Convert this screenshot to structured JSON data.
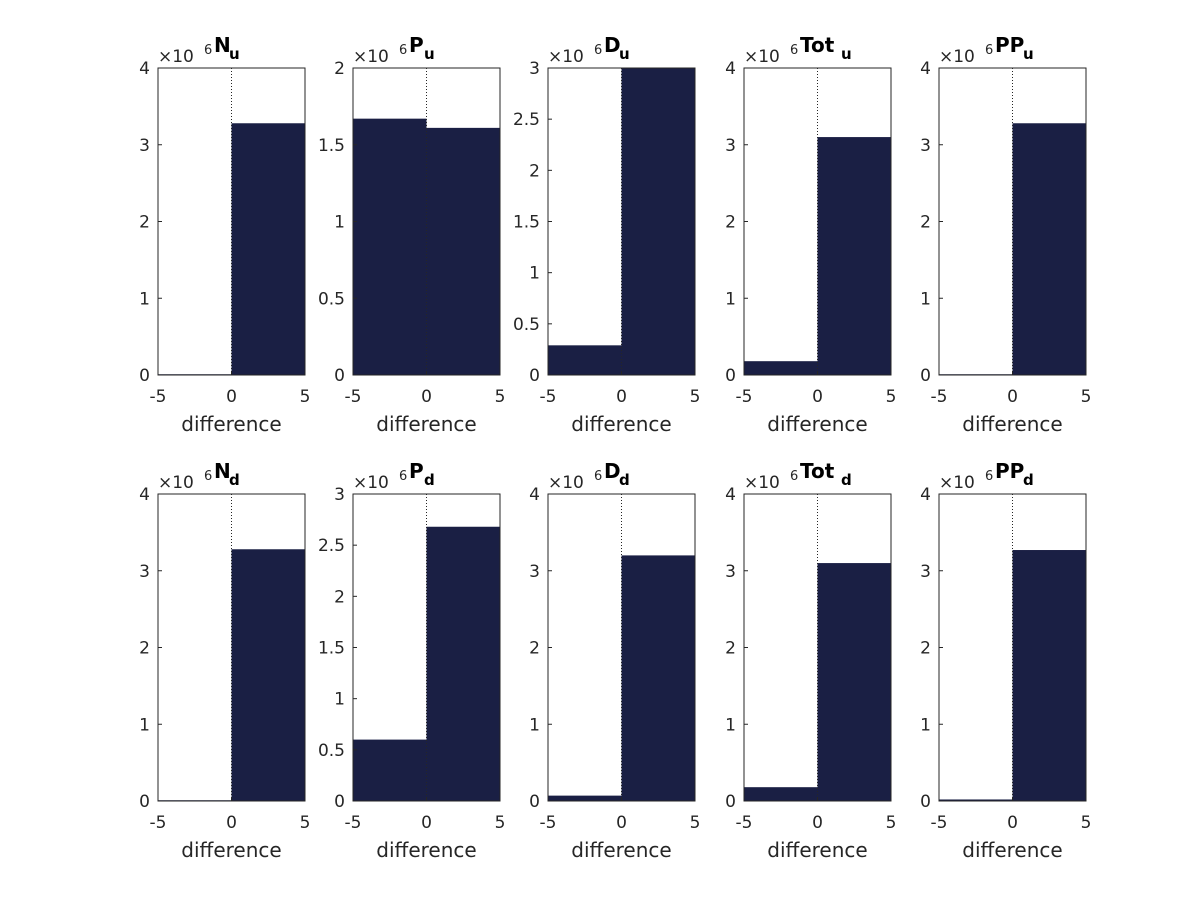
{
  "chart_data": [
    {
      "type": "bar",
      "title": "N",
      "subscript": "u",
      "xlabel": "difference",
      "bin_edges": [
        -5,
        0,
        5
      ],
      "values": [
        0.01,
        3.28
      ],
      "ylim": [
        0,
        4
      ],
      "yticks": [
        "0",
        "1",
        "2",
        "3",
        "4"
      ],
      "xticks": [
        "-5",
        "0",
        "5"
      ],
      "multiplier": "×10",
      "multiplier_exp": "6",
      "color": "#1a1f44"
    },
    {
      "type": "bar",
      "title": "P",
      "subscript": "u",
      "xlabel": "difference",
      "bin_edges": [
        -5,
        0,
        5
      ],
      "values": [
        1.67,
        1.61
      ],
      "ylim": [
        0,
        2
      ],
      "yticks": [
        "0",
        "0.5",
        "1",
        "1.5",
        "2"
      ],
      "xticks": [
        "-5",
        "0",
        "5"
      ],
      "multiplier": "×10",
      "multiplier_exp": "6",
      "color": "#1a1f44"
    },
    {
      "type": "bar",
      "title": "D",
      "subscript": "u",
      "xlabel": "difference",
      "bin_edges": [
        -5,
        0,
        5
      ],
      "values": [
        0.29,
        3.0
      ],
      "ylim": [
        0,
        3
      ],
      "yticks": [
        "0",
        "0.5",
        "1",
        "1.5",
        "2",
        "2.5",
        "3"
      ],
      "xticks": [
        "-5",
        "0",
        "5"
      ],
      "multiplier": "×10",
      "multiplier_exp": "6",
      "color": "#1a1f44"
    },
    {
      "type": "bar",
      "title": "Tot",
      "subscript": "u",
      "xlabel": "difference",
      "bin_edges": [
        -5,
        0,
        5
      ],
      "values": [
        0.18,
        3.1
      ],
      "ylim": [
        0,
        4
      ],
      "yticks": [
        "0",
        "1",
        "2",
        "3",
        "4"
      ],
      "xticks": [
        "-5",
        "0",
        "5"
      ],
      "multiplier": "×10",
      "multiplier_exp": "6",
      "color": "#1a1f44"
    },
    {
      "type": "bar",
      "title": "PP",
      "subscript": "u",
      "xlabel": "difference",
      "bin_edges": [
        -5,
        0,
        5
      ],
      "values": [
        0.01,
        3.28
      ],
      "ylim": [
        0,
        4
      ],
      "yticks": [
        "0",
        "1",
        "2",
        "3",
        "4"
      ],
      "xticks": [
        "-5",
        "0",
        "5"
      ],
      "multiplier": "×10",
      "multiplier_exp": "6",
      "color": "#1a1f44"
    },
    {
      "type": "bar",
      "title": "N",
      "subscript": "d",
      "xlabel": "difference",
      "bin_edges": [
        -5,
        0,
        5
      ],
      "values": [
        0.01,
        3.28
      ],
      "ylim": [
        0,
        4
      ],
      "yticks": [
        "0",
        "1",
        "2",
        "3",
        "4"
      ],
      "xticks": [
        "-5",
        "0",
        "5"
      ],
      "multiplier": "×10",
      "multiplier_exp": "6",
      "color": "#1a1f44"
    },
    {
      "type": "bar",
      "title": "P",
      "subscript": "d",
      "xlabel": "difference",
      "bin_edges": [
        -5,
        0,
        5
      ],
      "values": [
        0.6,
        2.68
      ],
      "ylim": [
        0,
        3
      ],
      "yticks": [
        "0",
        "0.5",
        "1",
        "1.5",
        "2",
        "2.5",
        "3"
      ],
      "xticks": [
        "-5",
        "0",
        "5"
      ],
      "multiplier": "×10",
      "multiplier_exp": "6",
      "color": "#1a1f44"
    },
    {
      "type": "bar",
      "title": "D",
      "subscript": "d",
      "xlabel": "difference",
      "bin_edges": [
        -5,
        0,
        5
      ],
      "values": [
        0.07,
        3.2
      ],
      "ylim": [
        0,
        4
      ],
      "yticks": [
        "0",
        "1",
        "2",
        "3",
        "4"
      ],
      "xticks": [
        "-5",
        "0",
        "5"
      ],
      "multiplier": "×10",
      "multiplier_exp": "6",
      "color": "#1a1f44"
    },
    {
      "type": "bar",
      "title": "Tot",
      "subscript": "d",
      "xlabel": "difference",
      "bin_edges": [
        -5,
        0,
        5
      ],
      "values": [
        0.18,
        3.1
      ],
      "ylim": [
        0,
        4
      ],
      "yticks": [
        "0",
        "1",
        "2",
        "3",
        "4"
      ],
      "xticks": [
        "-5",
        "0",
        "5"
      ],
      "multiplier": "×10",
      "multiplier_exp": "6",
      "color": "#1a1f44"
    },
    {
      "type": "bar",
      "title": "PP",
      "subscript": "d",
      "xlabel": "difference",
      "bin_edges": [
        -5,
        0,
        5
      ],
      "values": [
        0.02,
        3.27
      ],
      "ylim": [
        0,
        4
      ],
      "yticks": [
        "0",
        "1",
        "2",
        "3",
        "4"
      ],
      "xticks": [
        "-5",
        "0",
        "5"
      ],
      "multiplier": "×10",
      "multiplier_exp": "6",
      "color": "#1a1f44"
    }
  ]
}
